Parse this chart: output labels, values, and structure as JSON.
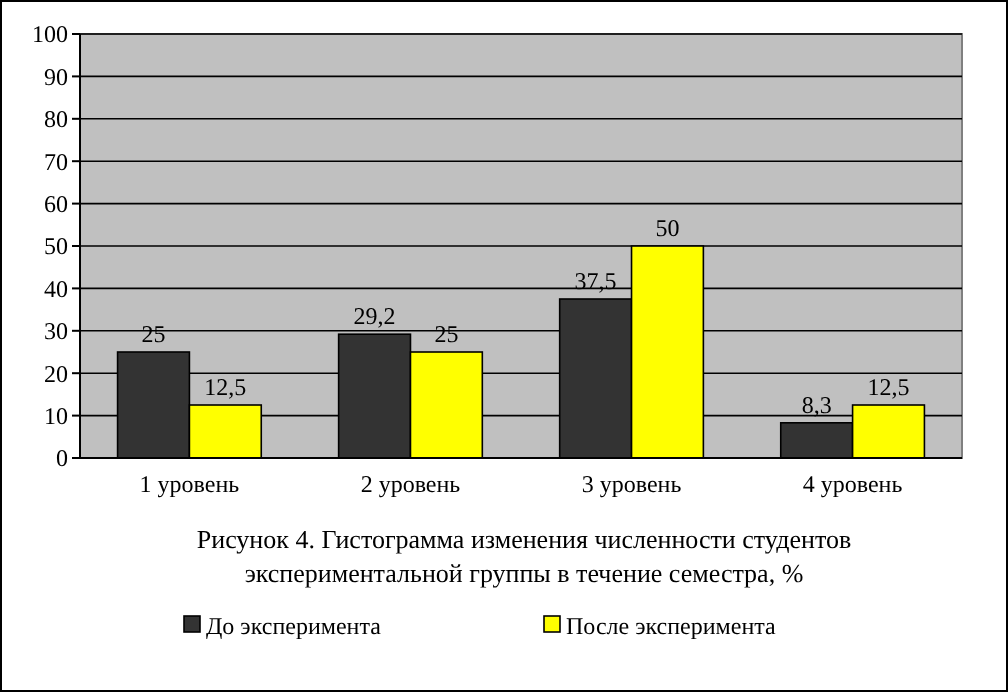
{
  "chart_data": {
    "type": "bar",
    "title": "Рисунок 4. Гистограмма изменения численности студентов экспериментальной группы в течение семестра, %",
    "categories": [
      "1 уровень",
      "2 уровень",
      "3 уровень",
      "4 уровень"
    ],
    "series": [
      {
        "name": "До эксперимента",
        "color": "#333333",
        "values": [
          25,
          29.2,
          37.5,
          8.3
        ],
        "value_labels": [
          "25",
          "29,2",
          "37,5",
          "8,3"
        ]
      },
      {
        "name": "После эксперимента",
        "color": "#ffff00",
        "values": [
          12.5,
          25,
          50,
          12.5
        ],
        "value_labels": [
          "12,5",
          "25",
          "50",
          "12,5"
        ]
      }
    ],
    "ylim": [
      0,
      100
    ],
    "yticks": [
      0,
      10,
      20,
      30,
      40,
      50,
      60,
      70,
      80,
      90,
      100
    ],
    "grid": "y",
    "legend": "bottom"
  }
}
